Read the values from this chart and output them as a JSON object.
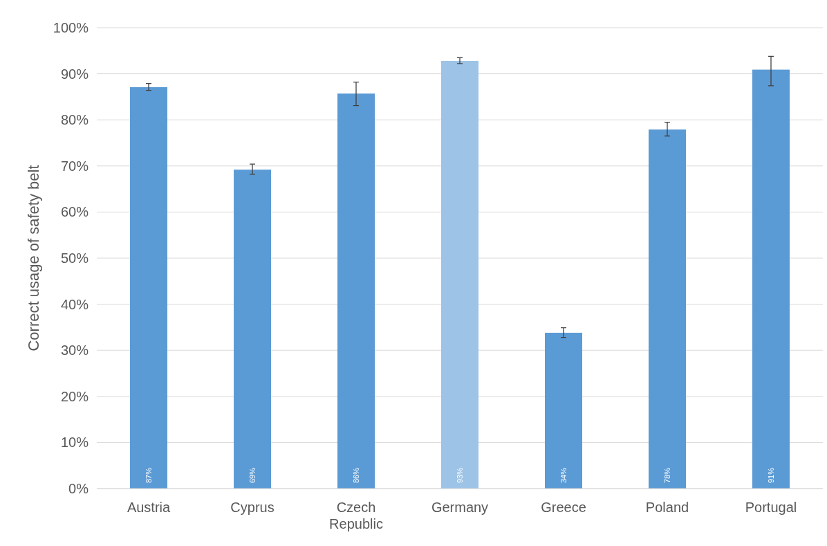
{
  "chart_data": {
    "type": "bar",
    "ylabel": "Correct usage of safety belt",
    "categories": [
      "Austria",
      "Cyprus",
      "Czech Republic",
      "Germany",
      "Greece",
      "Poland",
      "Portugal"
    ],
    "values": [
      87.1,
      69.2,
      85.7,
      92.8,
      33.8,
      77.9,
      90.9
    ],
    "value_labels": [
      "87%",
      "69%",
      "86%",
      "93%",
      "34%",
      "78%",
      "91%"
    ],
    "colors": [
      "#5b9bd5",
      "#5b9bd5",
      "#5b9bd5",
      "#9dc3e6",
      "#5b9bd5",
      "#5b9bd5",
      "#5b9bd5"
    ],
    "errors": [
      [
        86.4,
        87.9
      ],
      [
        68.2,
        70.4
      ],
      [
        83.1,
        88.2
      ],
      [
        92.2,
        93.5
      ],
      [
        32.8,
        34.9
      ],
      [
        76.5,
        79.5
      ],
      [
        87.4,
        93.8
      ]
    ],
    "ylim": [
      0,
      100
    ],
    "yticks": [
      {
        "value": 0,
        "label": "0%"
      },
      {
        "value": 10,
        "label": "10%"
      },
      {
        "value": 20,
        "label": "20%"
      },
      {
        "value": 30,
        "label": "30%"
      },
      {
        "value": 40,
        "label": "40%"
      },
      {
        "value": 50,
        "label": "50%"
      },
      {
        "value": 60,
        "label": "60%"
      },
      {
        "value": 70,
        "label": "70%"
      },
      {
        "value": 80,
        "label": "80%"
      },
      {
        "value": 90,
        "label": "90%"
      },
      {
        "value": 100,
        "label": "100%"
      }
    ],
    "grid": "y"
  }
}
